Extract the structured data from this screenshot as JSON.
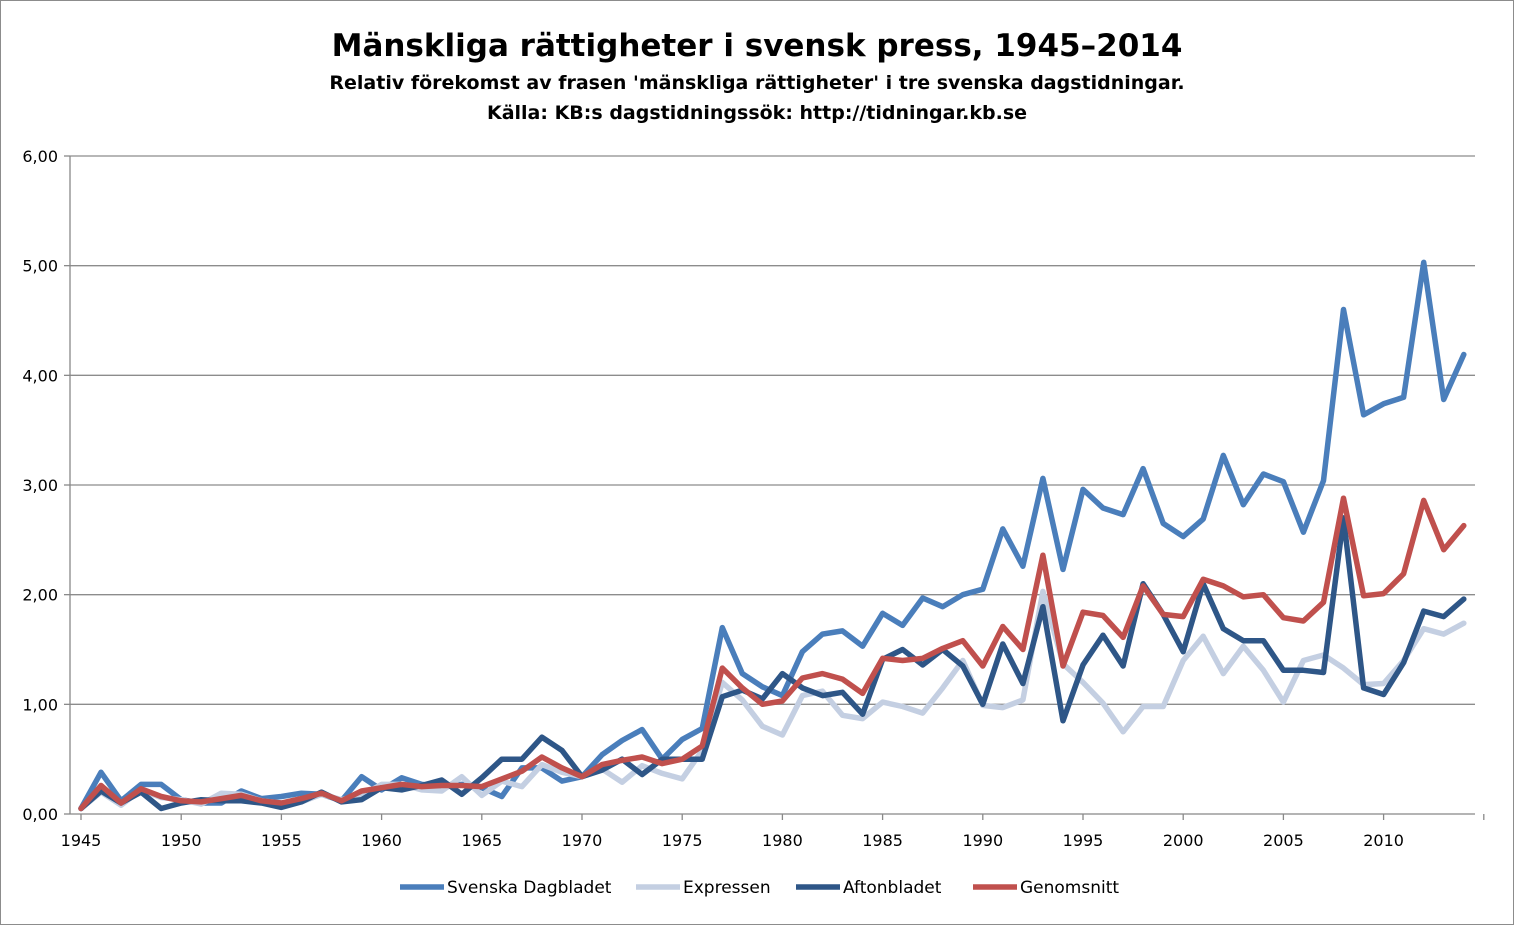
{
  "chart_data": {
    "type": "line",
    "title": "Mänskliga rättigheter i svensk press, 1945–2014",
    "subtitle": "Relativ förekomst av frasen 'mänskliga rättigheter' i tre svenska dagstidningar.",
    "source": "Källa: KB:s dagstidningssök: http://tidningar.kb.se",
    "xlabel": "",
    "ylabel": "",
    "ylim": [
      0,
      6
    ],
    "yticks": [
      "0,00",
      "1,00",
      "2,00",
      "3,00",
      "4,00",
      "5,00",
      "6,00"
    ],
    "xticks": [
      "1945",
      "1950",
      "1955",
      "1960",
      "1965",
      "1970",
      "1975",
      "1980",
      "1985",
      "1990",
      "1995",
      "2000",
      "2005",
      "2010"
    ],
    "x": [
      1945,
      1946,
      1947,
      1948,
      1949,
      1950,
      1951,
      1952,
      1953,
      1954,
      1955,
      1956,
      1957,
      1958,
      1959,
      1960,
      1961,
      1962,
      1963,
      1964,
      1965,
      1966,
      1967,
      1968,
      1969,
      1970,
      1971,
      1972,
      1973,
      1974,
      1975,
      1976,
      1977,
      1978,
      1979,
      1980,
      1981,
      1982,
      1983,
      1984,
      1985,
      1986,
      1987,
      1988,
      1989,
      1990,
      1991,
      1992,
      1993,
      1994,
      1995,
      1996,
      1997,
      1998,
      1999,
      2000,
      2001,
      2002,
      2003,
      2004,
      2005,
      2006,
      2007,
      2008,
      2009,
      2010,
      2011,
      2012,
      2013,
      2014
    ],
    "grid": "horizontal",
    "legend_position": "bottom",
    "series": [
      {
        "name": "Svenska Dagbladet",
        "color": "#4a7ebb",
        "values": [
          0.05,
          0.38,
          0.12,
          0.27,
          0.27,
          0.13,
          0.1,
          0.1,
          0.21,
          0.14,
          0.16,
          0.19,
          0.18,
          0.12,
          0.34,
          0.22,
          0.33,
          0.27,
          0.25,
          0.27,
          0.24,
          0.16,
          0.42,
          0.42,
          0.3,
          0.34,
          0.54,
          0.67,
          0.77,
          0.5,
          0.68,
          0.78,
          1.7,
          1.28,
          1.16,
          1.08,
          1.48,
          1.64,
          1.67,
          1.53,
          1.83,
          1.72,
          1.97,
          1.89,
          2.0,
          2.05,
          2.6,
          2.26,
          3.06,
          2.23,
          2.96,
          2.79,
          2.73,
          3.15,
          2.65,
          2.53,
          2.69,
          3.27,
          2.82,
          3.1,
          3.03,
          2.57,
          3.04,
          4.6,
          3.64,
          3.74,
          3.8,
          5.03,
          3.78,
          4.19
        ]
      },
      {
        "name": "Expressen",
        "color": "#c4cfe2",
        "values": [
          0.05,
          0.2,
          0.08,
          0.22,
          0.15,
          0.13,
          0.09,
          0.19,
          0.18,
          0.12,
          0.1,
          0.11,
          0.18,
          0.13,
          0.17,
          0.27,
          0.27,
          0.22,
          0.21,
          0.34,
          0.17,
          0.3,
          0.25,
          0.45,
          0.38,
          0.34,
          0.41,
          0.29,
          0.44,
          0.37,
          0.32,
          0.58,
          1.2,
          1.04,
          0.8,
          0.72,
          1.08,
          1.12,
          0.9,
          0.87,
          1.02,
          0.98,
          0.92,
          1.15,
          1.4,
          0.99,
          0.97,
          1.04,
          2.03,
          1.37,
          1.2,
          1.01,
          0.75,
          0.98,
          0.98,
          1.4,
          1.62,
          1.28,
          1.53,
          1.31,
          1.02,
          1.4,
          1.45,
          1.33,
          1.18,
          1.19,
          1.4,
          1.69,
          1.64,
          1.74
        ]
      },
      {
        "name": "Aftonbladet",
        "color": "#2e5687",
        "values": [
          0.05,
          0.21,
          0.1,
          0.2,
          0.05,
          0.1,
          0.13,
          0.12,
          0.12,
          0.1,
          0.06,
          0.11,
          0.2,
          0.11,
          0.13,
          0.24,
          0.22,
          0.26,
          0.31,
          0.18,
          0.33,
          0.5,
          0.5,
          0.7,
          0.58,
          0.34,
          0.4,
          0.5,
          0.36,
          0.5,
          0.5,
          0.5,
          1.07,
          1.13,
          1.05,
          1.28,
          1.15,
          1.08,
          1.11,
          0.91,
          1.41,
          1.5,
          1.36,
          1.5,
          1.35,
          1.0,
          1.55,
          1.19,
          1.89,
          0.85,
          1.36,
          1.63,
          1.35,
          2.1,
          1.82,
          1.48,
          2.1,
          1.69,
          1.58,
          1.58,
          1.31,
          1.31,
          1.29,
          2.7,
          1.15,
          1.09,
          1.38,
          1.85,
          1.8,
          1.96
        ]
      },
      {
        "name": "Genomsnitt",
        "color": "#c0504d",
        "values": [
          0.05,
          0.26,
          0.1,
          0.23,
          0.16,
          0.12,
          0.11,
          0.14,
          0.17,
          0.12,
          0.1,
          0.14,
          0.19,
          0.12,
          0.21,
          0.24,
          0.27,
          0.25,
          0.26,
          0.26,
          0.25,
          0.32,
          0.39,
          0.52,
          0.42,
          0.34,
          0.45,
          0.49,
          0.52,
          0.46,
          0.5,
          0.62,
          1.33,
          1.15,
          1.0,
          1.03,
          1.24,
          1.28,
          1.23,
          1.1,
          1.42,
          1.4,
          1.42,
          1.51,
          1.58,
          1.35,
          1.71,
          1.5,
          2.36,
          1.35,
          1.84,
          1.81,
          1.61,
          2.08,
          1.82,
          1.8,
          2.14,
          2.08,
          1.98,
          2.0,
          1.79,
          1.76,
          1.93,
          2.88,
          1.99,
          2.01,
          2.19,
          2.86,
          2.41,
          2.63
        ]
      }
    ]
  }
}
